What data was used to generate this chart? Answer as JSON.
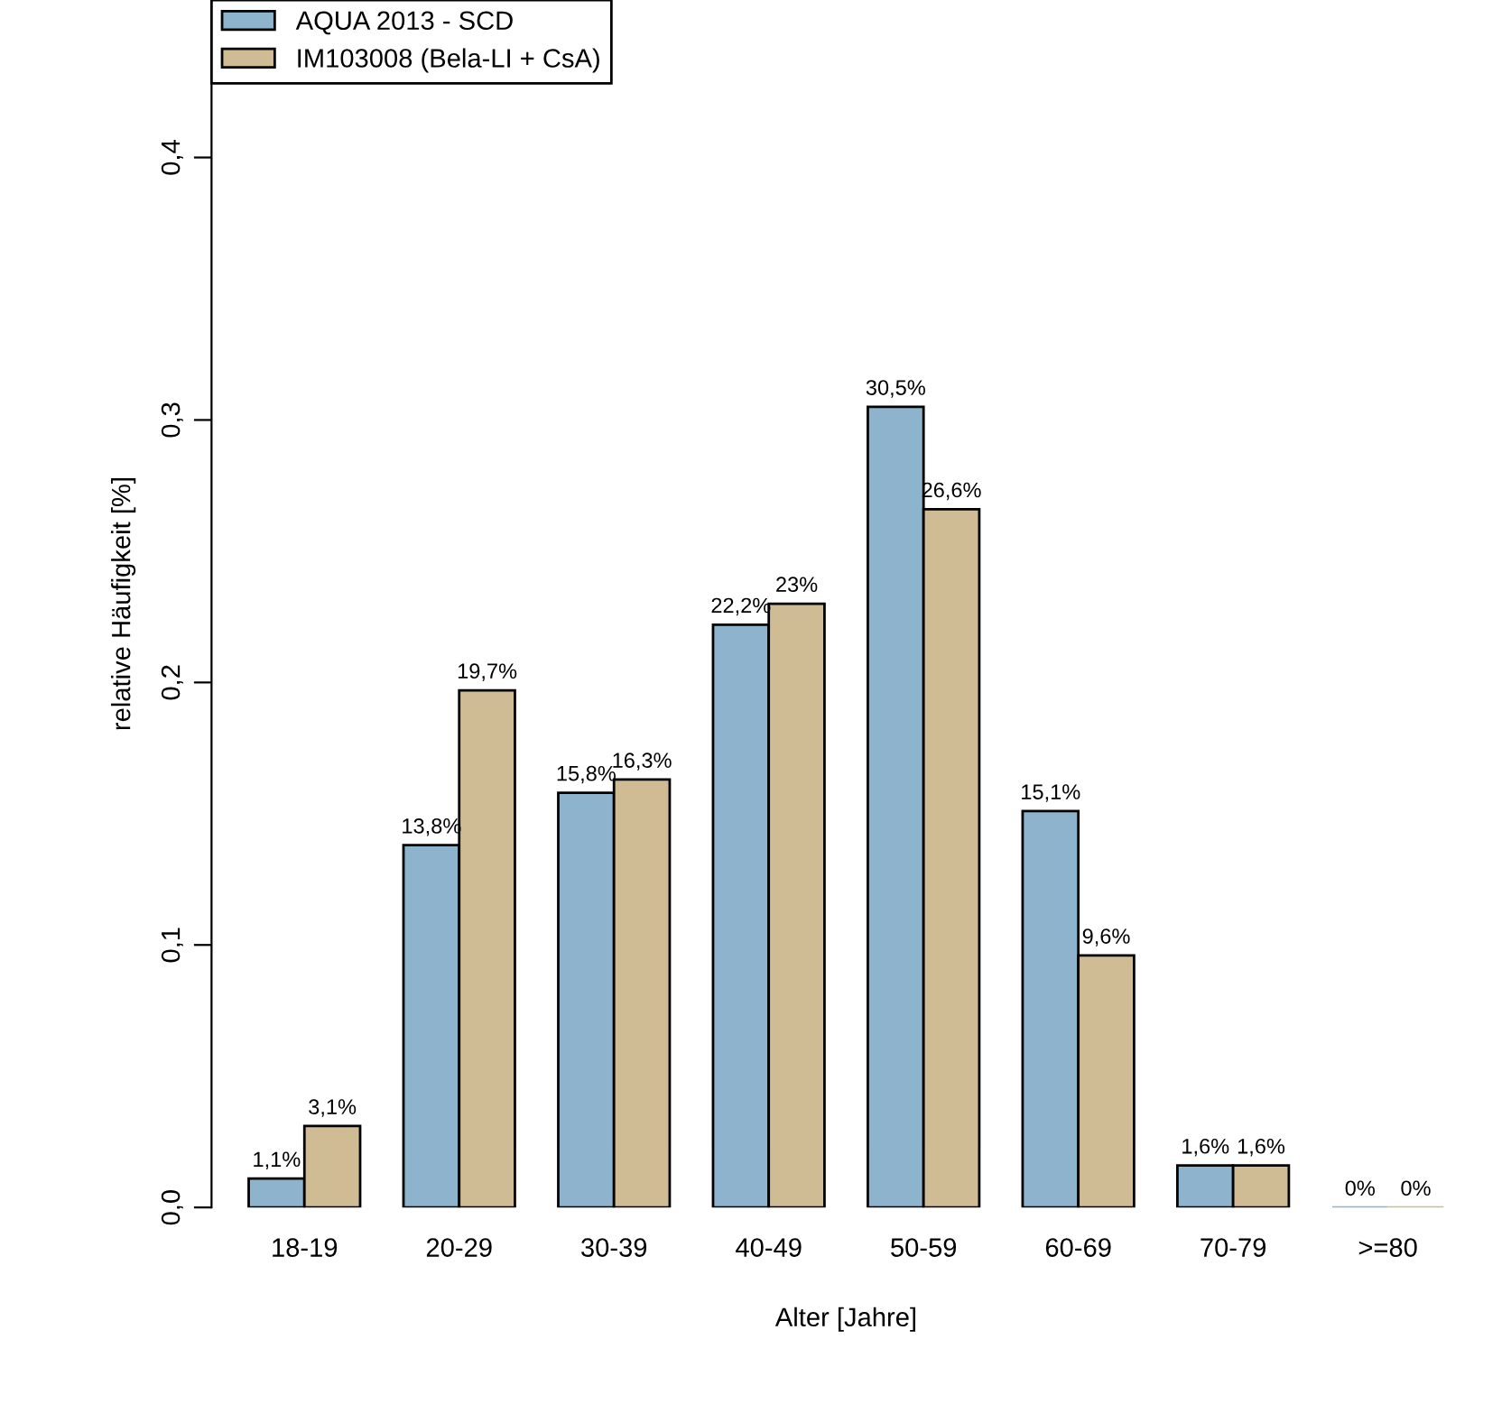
{
  "chart_data": {
    "type": "bar",
    "xlabel": "Alter [Jahre]",
    "ylabel": "relative Häufigkeit [%]",
    "categories": [
      "18-19",
      "20-29",
      "30-39",
      "40-49",
      "50-59",
      "60-69",
      "70-79",
      ">=80"
    ],
    "series": [
      {
        "name": "AQUA 2013 - SCD",
        "color": "#8db4cc",
        "values": [
          0.011,
          0.138,
          0.158,
          0.222,
          0.305,
          0.151,
          0.016,
          0
        ],
        "value_labels": [
          "1,1%",
          "13,8%",
          "15,8%",
          "22,2%",
          "30,5%",
          "15,1%",
          "1,6%",
          "0%"
        ]
      },
      {
        "name": "IM103008 (Bela-LI + CsA)",
        "color": "#d0bc94",
        "values": [
          0.031,
          0.197,
          0.163,
          0.23,
          0.266,
          0.096,
          0.016,
          0
        ],
        "value_labels": [
          "3,1%",
          "19,7%",
          "16,3%",
          "23%",
          "26,6%",
          "9,6%",
          "1,6%",
          "0%"
        ]
      }
    ],
    "ylim": [
      0,
      0.46
    ],
    "yticks": [
      {
        "value": 0,
        "label": "0,0"
      },
      {
        "value": 0.1,
        "label": "0,1"
      },
      {
        "value": 0.2,
        "label": "0,2"
      },
      {
        "value": 0.3,
        "label": "0,3"
      },
      {
        "value": 0.4,
        "label": "0,4"
      }
    ],
    "grid": false,
    "legend": "top left"
  }
}
